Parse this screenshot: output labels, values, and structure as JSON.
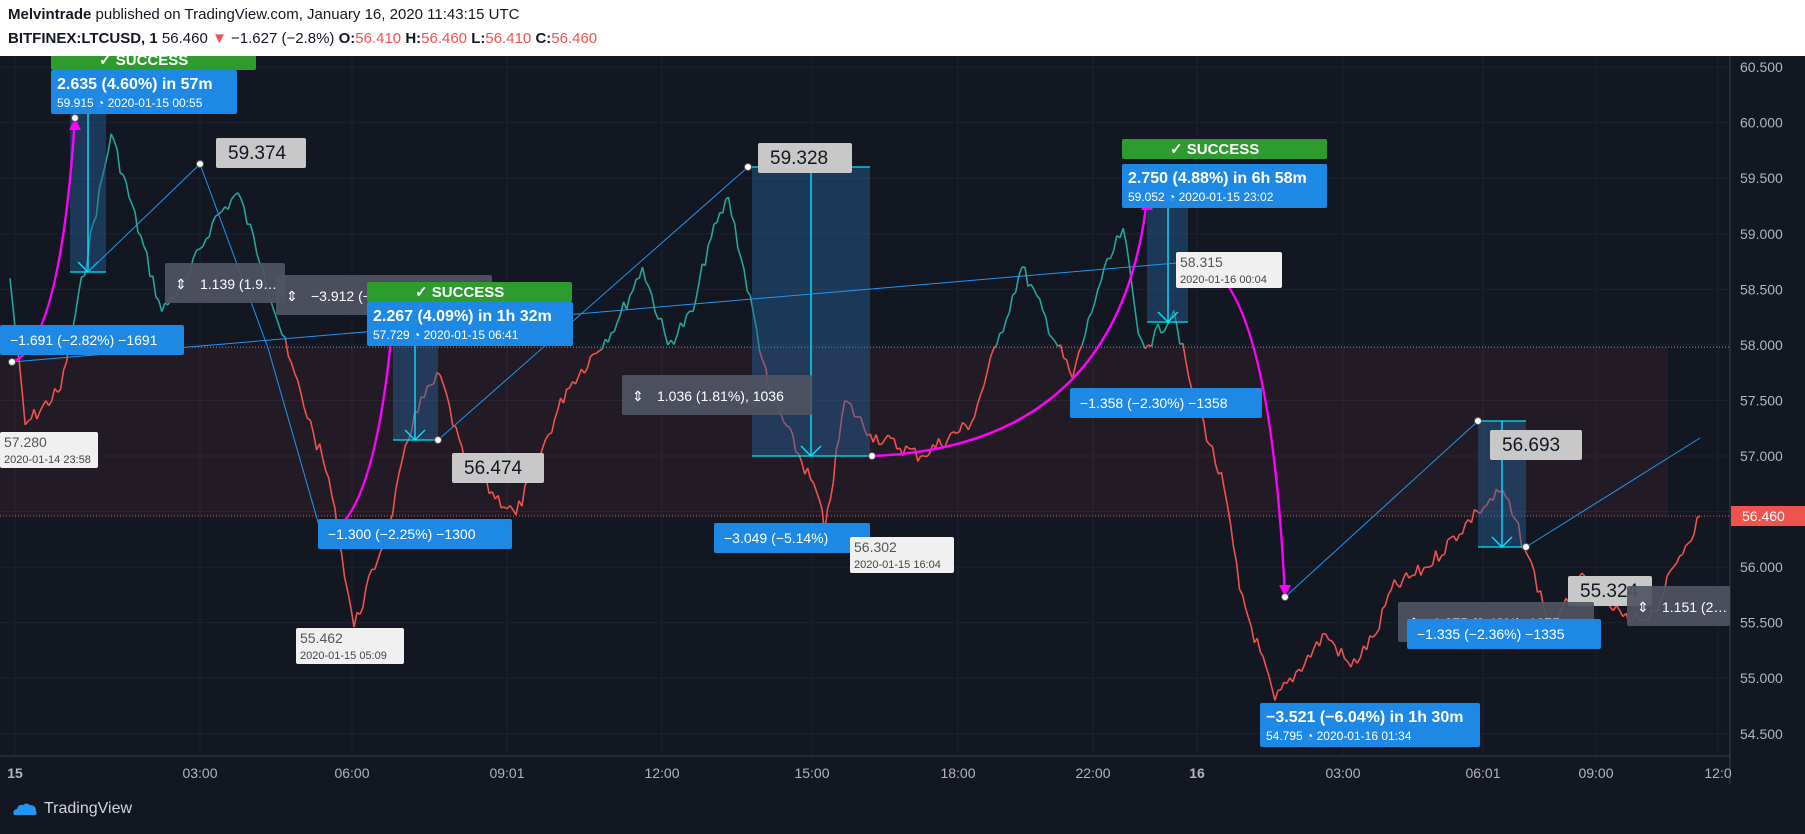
{
  "header": {
    "author": "Melvintrade",
    "published": "published on TradingView.com, January 16, 2020 11:43:15 UTC",
    "symbol": "BITFINEX:LTCUSD, 1",
    "price": "56.460",
    "change": "−1.627 (−2.8%)",
    "o_label": "O:",
    "o_value": "56.410",
    "h_label": "H:",
    "h_value": "56.460",
    "l_label": "L:",
    "l_value": "56.410",
    "c_label": "C:",
    "c_value": "56.460"
  },
  "footer": {
    "brand": "TradingView"
  },
  "colors": {
    "bg": "#131722",
    "up": "#26a69a",
    "down": "#ef5350",
    "arc": "#ff00ff",
    "label_blue": "#1e88e5",
    "success": "#2e8b2e",
    "trend": "#2196f3",
    "cyan": "#00e5ff"
  },
  "chart_data": {
    "type": "line",
    "title": "",
    "ylim": [
      54.3,
      60.6
    ],
    "y_ticks": [
      "60.500",
      "60.000",
      "59.500",
      "59.000",
      "58.500",
      "58.000",
      "57.500",
      "57.000",
      "56.500",
      "56.000",
      "55.500",
      "55.000",
      "54.500"
    ],
    "x_ticks": [
      "15",
      "03:00",
      "06:00",
      "09:01",
      "12:00",
      "15:00",
      "18:00",
      "22:00",
      "16",
      "03:00",
      "06:01",
      "09:00",
      "12:0"
    ],
    "last_price": "56.460",
    "series": [
      {
        "x": [
          0,
          0.3,
          1,
          2,
          3,
          3.5,
          4,
          4.5,
          5,
          5.5,
          6,
          6.3,
          6.8,
          7.5,
          8,
          8.5,
          9,
          10,
          11,
          12,
          12.5,
          13,
          13.5,
          13.8,
          14.2,
          15,
          16,
          16.1,
          16.5,
          17,
          18,
          19,
          19.5,
          20,
          21,
          21.5,
          22,
          22.3,
          22.5,
          23,
          23.3,
          24,
          24.3,
          25,
          26,
          26.5,
          27,
          27.3,
          28,
          29,
          29.5,
          30,
          30.5,
          31,
          31.5,
          32,
          32.5,
          33,
          33.4
        ],
        "values": [
          58.6,
          57.28,
          57.6,
          59.9,
          58.3,
          58.6,
          59.1,
          59.37,
          58.7,
          57.9,
          57.2,
          56.8,
          55.46,
          56.4,
          57.4,
          57.73,
          56.9,
          56.47,
          57.6,
          58.2,
          58.7,
          58.0,
          58.3,
          58.9,
          59.33,
          57.6,
          56.6,
          56.3,
          57.5,
          57.2,
          57.0,
          57.3,
          58.0,
          58.7,
          57.7,
          58.5,
          59.05,
          58.1,
          58.0,
          58.31,
          57.7,
          56.7,
          55.8,
          54.8,
          55.4,
          55.1,
          55.4,
          55.8,
          56.0,
          56.5,
          56.69,
          56.1,
          55.4,
          55.9,
          55.7,
          55.5,
          55.6,
          56.1,
          56.46
        ]
      }
    ],
    "annotations": [
      {
        "kind": "success",
        "label": "✓ SUCCESS"
      },
      {
        "kind": "target",
        "label": "2.635 (4.60%) in 57m",
        "sub": "59.915",
        "time": "2020-01-15  00:55"
      },
      {
        "kind": "price",
        "label": "59.374"
      },
      {
        "kind": "range",
        "label": "1.139 (1.9…"
      },
      {
        "kind": "range",
        "label": "−3.912 (−6.5…"
      },
      {
        "kind": "stop",
        "label": "−1.691 (−2.82%) −1691"
      },
      {
        "kind": "point",
        "label": "57.280",
        "time": "2020-01-14 23:58"
      },
      {
        "kind": "success",
        "label": "✓ SUCCESS"
      },
      {
        "kind": "target",
        "label": "2.267 (4.09%) in 1h 32m",
        "sub": "57.729",
        "time": "2020-01-15  06:41"
      },
      {
        "kind": "price",
        "label": "56.474"
      },
      {
        "kind": "stop",
        "label": "−1.300 (−2.25%) −1300"
      },
      {
        "kind": "point",
        "label": "55.462",
        "time": "2020-01-15 05:09"
      },
      {
        "kind": "price",
        "label": "59.328"
      },
      {
        "kind": "range",
        "label": "1.036 (1.81%), 1036"
      },
      {
        "kind": "stop",
        "label": "−3.049 (−5.14%)"
      },
      {
        "kind": "point",
        "label": "56.302",
        "time": "2020-01-15 16:04"
      },
      {
        "kind": "success",
        "label": "✓ SUCCESS"
      },
      {
        "kind": "target",
        "label": "2.750 (4.88%) in 6h 58m",
        "sub": "59.052",
        "time": "2020-01-15  23:02"
      },
      {
        "kind": "point",
        "label": "58.315",
        "time": "2020-01-16 00:04"
      },
      {
        "kind": "stop",
        "label": "−1.358 (−2.30%) −1358"
      },
      {
        "kind": "price",
        "label": "56.693"
      },
      {
        "kind": "price",
        "label": "55.324"
      },
      {
        "kind": "range",
        "label": "1.875 (3.42%), 1875"
      },
      {
        "kind": "range",
        "label": "1.151 (2…"
      },
      {
        "kind": "stop",
        "label": "−1.335 (−2.36%) −1335"
      },
      {
        "kind": "target",
        "label": "−3.521 (−6.04%) in 1h 30m",
        "sub": "54.795",
        "time": "2020-01-16  01:34"
      }
    ]
  }
}
